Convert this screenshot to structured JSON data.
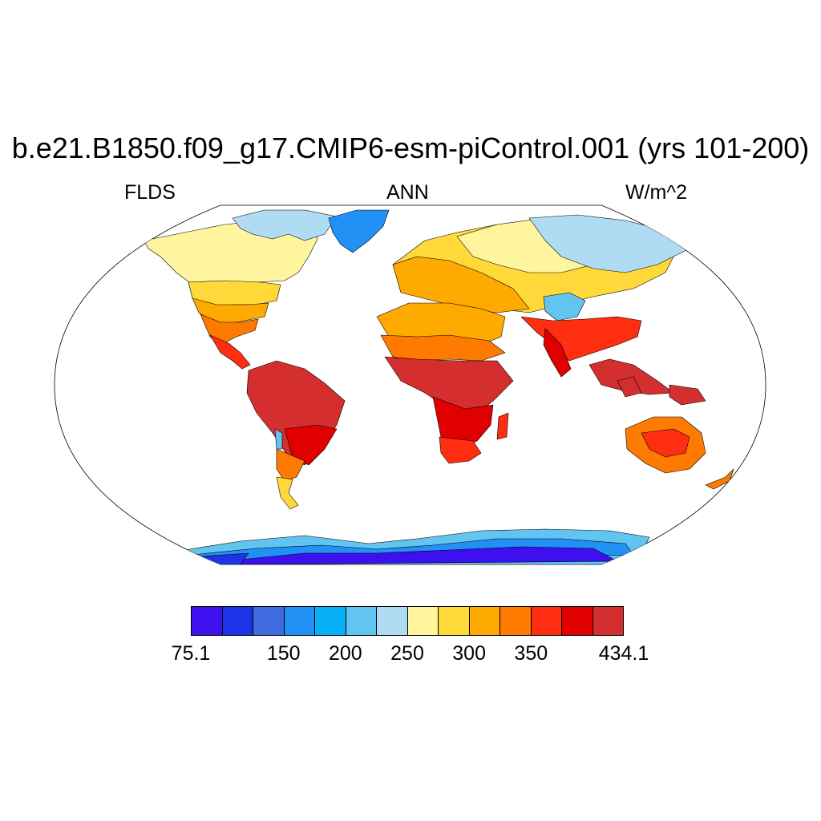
{
  "title": "b.e21.B1850.f09_g17.CMIP6-esm-piControl.001 (yrs 101-200)",
  "variable": "FLDS",
  "season": "ANN",
  "units": "W/m^2",
  "colorbar": {
    "colors": [
      "#3e10f0",
      "#1e33e8",
      "#3f6ce0",
      "#2291f5",
      "#08b0f7",
      "#62c4f1",
      "#afdcf2",
      "#fff59f",
      "#ffd83a",
      "#ffaa00",
      "#ff7a00",
      "#ff2e10",
      "#e00000",
      "#d42e2e"
    ],
    "tick_labels": [
      {
        "label": "75.1",
        "pos": 0
      },
      {
        "label": "150",
        "pos": 3
      },
      {
        "label": "200",
        "pos": 5
      },
      {
        "label": "250",
        "pos": 7
      },
      {
        "label": "300",
        "pos": 9
      },
      {
        "label": "350",
        "pos": 11
      },
      {
        "label": "434.1",
        "pos": 14
      }
    ]
  },
  "map": {
    "projection": "Robinson",
    "field": "annual mean downwelling longwave flux at surface (land only)"
  }
}
